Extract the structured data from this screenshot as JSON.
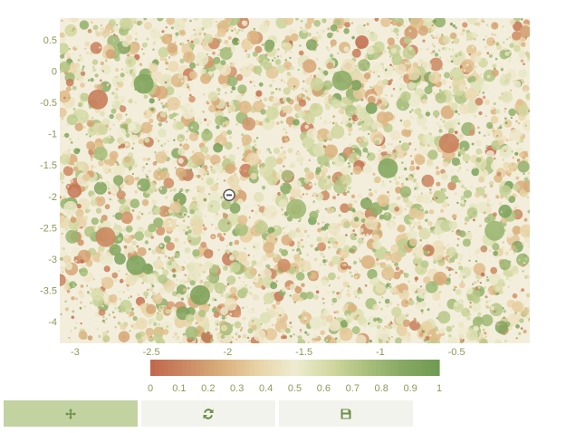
{
  "chart_data": {
    "type": "scatter",
    "title": "",
    "xlabel": "",
    "ylabel": "",
    "xlim": [
      -3.1,
      -0.02
    ],
    "ylim": [
      -4.35,
      0.85
    ],
    "x_ticks": [
      "-3",
      "-2.5",
      "-2",
      "-1.5",
      "-1",
      "-0.5"
    ],
    "x_tick_values": [
      -3,
      -2.5,
      -2,
      -1.5,
      -1,
      -0.5
    ],
    "y_ticks": [
      "0.5",
      "0",
      "-0.5",
      "-1",
      "-1.5",
      "-2",
      "-2.5",
      "-3",
      "-3.5",
      "-4"
    ],
    "y_tick_values": [
      0.5,
      0,
      -0.5,
      -1,
      -1.5,
      -2,
      -2.5,
      -3,
      -3.5,
      -4
    ],
    "color_range": [
      0,
      1
    ],
    "colorbar_ticks": [
      "0",
      "0.1",
      "0.2",
      "0.3",
      "0.4",
      "0.5",
      "0.6",
      "0.7",
      "0.8",
      "0.9",
      "1"
    ],
    "colorbar_tick_values": [
      0,
      0.1,
      0.2,
      0.3,
      0.4,
      0.5,
      0.6,
      0.7,
      0.8,
      0.9,
      1
    ],
    "colorscale": [
      "#c0674a",
      "#cc8a63",
      "#dab07c",
      "#e9d3a6",
      "#eeecd2",
      "#d2d8a0",
      "#a9bf7c",
      "#86a862",
      "#6f9a52"
    ],
    "marker": "circle",
    "sample_points": [
      {
        "x": -2.18,
        "y": -3.58,
        "value": 0.92
      },
      {
        "x": -2.6,
        "y": -3.1,
        "value": 0.9
      },
      {
        "x": -0.95,
        "y": -1.55,
        "value": 0.88
      },
      {
        "x": -2.85,
        "y": -0.45,
        "value": 0.08
      },
      {
        "x": -1.25,
        "y": -0.15,
        "value": 0.85
      },
      {
        "x": -2.55,
        "y": -0.2,
        "value": 0.9
      },
      {
        "x": -0.55,
        "y": -1.15,
        "value": 0.1
      },
      {
        "x": -2.8,
        "y": -2.65,
        "value": 0.12
      },
      {
        "x": -1.55,
        "y": -2.2,
        "value": 0.78
      },
      {
        "x": -0.25,
        "y": -2.55,
        "value": 0.8
      }
    ],
    "annotation_marker": {
      "x": -1.99,
      "y": -1.98
    }
  },
  "toolbar": {
    "buttons": [
      {
        "name": "pan-button",
        "icon": "move-icon",
        "active": true
      },
      {
        "name": "reset-button",
        "icon": "refresh-icon",
        "active": false
      },
      {
        "name": "save-button",
        "icon": "save-icon",
        "active": false
      }
    ]
  }
}
